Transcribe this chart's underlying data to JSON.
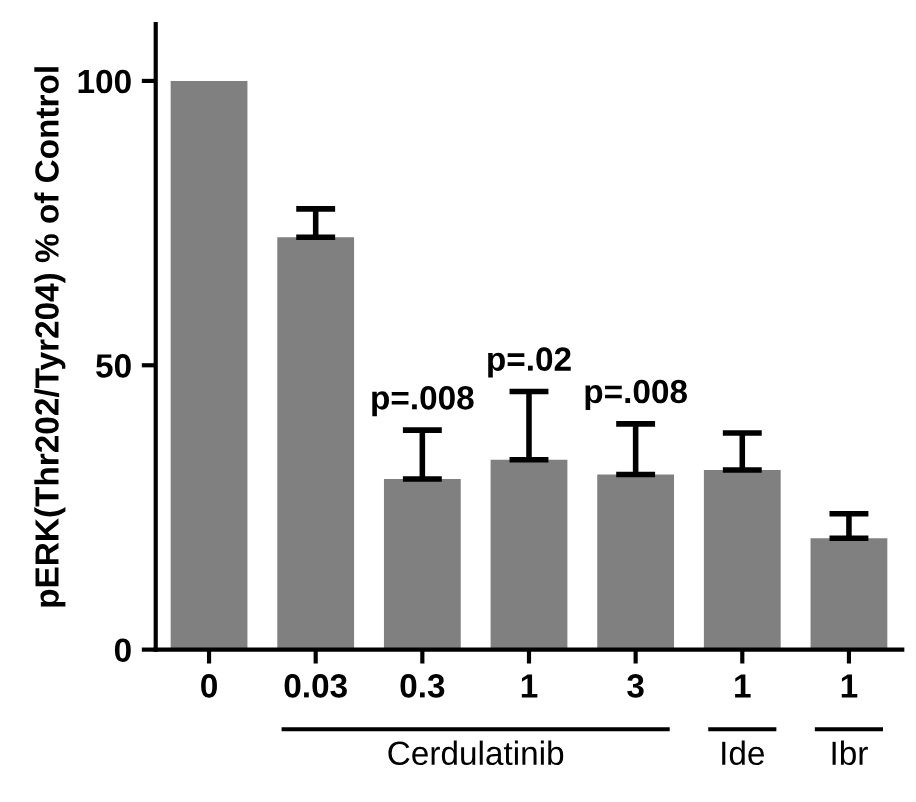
{
  "chart_data": {
    "type": "bar",
    "ylabel": "pERK(Thr202/Tyr204) % of Control",
    "categories": [
      "0",
      "0.03",
      "0.3",
      "1",
      "3",
      "1",
      "1"
    ],
    "values": [
      100,
      72.5,
      30.0,
      33.4,
      30.8,
      31.6,
      19.6
    ],
    "errors": [
      null,
      [
        72.5,
        77.5
      ],
      [
        30.0,
        38.6
      ],
      [
        33.4,
        45.4
      ],
      [
        30.8,
        39.7
      ],
      [
        31.6,
        38.1
      ],
      [
        19.6,
        23.9
      ]
    ],
    "color": "#808080",
    "ylim": [
      0,
      110
    ],
    "yticks": [
      0,
      50,
      100
    ],
    "grid": false,
    "annotations": [
      {
        "text": "p=.008",
        "x": "0.3",
        "y": 38.6
      },
      {
        "text": "p=.02",
        "x": "1",
        "y": 45.4
      },
      {
        "text": "p=.008",
        "x": "3",
        "y": 39.7
      },
      "Cerdulatinib",
      "Ide",
      "Ibr"
    ]
  }
}
